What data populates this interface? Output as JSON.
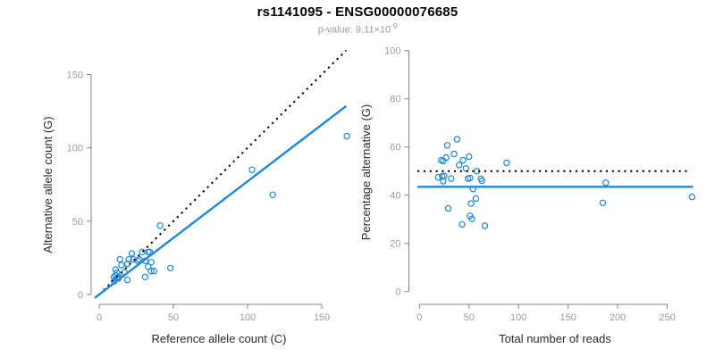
{
  "header": {
    "title": "rs1141095 - ENSG00000076685",
    "p_value_text": "p-value: 9.11×10",
    "p_value_exponent": "-9"
  },
  "colors": {
    "accent_blue": "#1E88DF",
    "line_black": "#000000",
    "axis_gray": "#848484",
    "tick_label_gray": "#9C9C9C",
    "title_color": "#000000",
    "subtitle_gray": "#9E9E9E"
  },
  "chart_data": [
    {
      "type": "scatter",
      "xlabel": "Reference allele count (C)",
      "ylabel": "Alternative allele count (G)",
      "xlim": [
        0,
        167
      ],
      "ylim": [
        0,
        168
      ],
      "xticks": [
        0,
        50,
        100,
        150
      ],
      "yticks": [
        0,
        50,
        100,
        150
      ],
      "grid": false,
      "legend": "none",
      "points": [
        [
          10,
          9
        ],
        [
          10,
          12
        ],
        [
          11,
          13
        ],
        [
          11,
          17
        ],
        [
          12,
          11
        ],
        [
          12,
          15
        ],
        [
          13,
          11
        ],
        [
          13,
          12
        ],
        [
          14,
          24
        ],
        [
          15,
          20
        ],
        [
          17,
          15
        ],
        [
          19,
          10
        ],
        [
          19,
          21
        ],
        [
          20,
          24
        ],
        [
          22,
          28
        ],
        [
          23,
          24
        ],
        [
          26,
          23
        ],
        [
          27,
          24
        ],
        [
          29,
          29
        ],
        [
          31,
          12
        ],
        [
          31,
          23
        ],
        [
          33,
          19
        ],
        [
          33,
          29
        ],
        [
          34,
          29
        ],
        [
          35,
          16
        ],
        [
          35,
          22
        ],
        [
          37,
          16
        ],
        [
          41,
          47
        ],
        [
          48,
          18
        ],
        [
          103,
          85
        ],
        [
          117,
          68
        ],
        [
          167,
          108
        ]
      ],
      "lines": [
        {
          "name": "identity-line",
          "style": "dotted",
          "color": "#000000",
          "from": [
            0,
            0
          ],
          "to": [
            166.5,
            166.5
          ]
        },
        {
          "name": "fit-line",
          "style": "solid",
          "color": "#1E88DF",
          "from": [
            -3,
            -2.3
          ],
          "to": [
            166.5,
            128.5
          ]
        }
      ]
    },
    {
      "type": "scatter",
      "xlabel": "Total number of reads",
      "ylabel": "Percentage alternative (G)",
      "xlim": [
        0,
        275
      ],
      "ylim": [
        0,
        100
      ],
      "xticks": [
        0,
        50,
        100,
        150,
        200,
        250
      ],
      "yticks": [
        0,
        20,
        40,
        60,
        80,
        100
      ],
      "grid": false,
      "legend": "none",
      "points": [
        [
          19,
          47.4
        ],
        [
          22,
          54.5
        ],
        [
          24,
          54.2
        ],
        [
          28,
          60.7
        ],
        [
          23,
          47.8
        ],
        [
          27,
          55.6
        ],
        [
          24,
          45.8
        ],
        [
          25,
          48.0
        ],
        [
          38,
          63.2
        ],
        [
          35,
          57.1
        ],
        [
          32,
          46.9
        ],
        [
          29,
          34.5
        ],
        [
          40,
          52.5
        ],
        [
          44,
          54.5
        ],
        [
          50,
          56.0
        ],
        [
          47,
          51.1
        ],
        [
          49,
          46.9
        ],
        [
          51,
          47.1
        ],
        [
          58,
          50.0
        ],
        [
          43,
          27.9
        ],
        [
          54,
          42.6
        ],
        [
          52,
          36.5
        ],
        [
          62,
          46.8
        ],
        [
          63,
          46.0
        ],
        [
          51,
          31.4
        ],
        [
          57,
          38.6
        ],
        [
          53,
          30.2
        ],
        [
          88,
          53.4
        ],
        [
          66,
          27.3
        ],
        [
          188,
          45.2
        ],
        [
          185,
          36.8
        ],
        [
          275,
          39.3
        ]
      ],
      "lines": [
        {
          "name": "expected-50pct-line",
          "style": "dotted",
          "color": "#000000",
          "from": [
            -2,
            50
          ],
          "to": [
            272,
            50
          ]
        },
        {
          "name": "mean-pct-line",
          "style": "solid",
          "color": "#1E88DF",
          "from": [
            -2,
            43.5
          ],
          "to": [
            276,
            43.5
          ]
        }
      ]
    }
  ]
}
